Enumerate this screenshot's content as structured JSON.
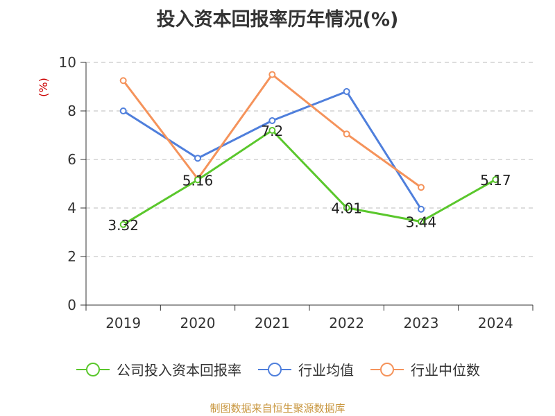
{
  "title": "投入资本回报率历年情况(%)",
  "footer": "制图数据来自恒生聚源数据库",
  "chart_data": {
    "type": "line",
    "title": "投入资本回报率历年情况(%)",
    "ylabel": "(%)",
    "xlabel": "",
    "ylim": [
      0,
      10
    ],
    "yticks": [
      "0",
      "2",
      "4",
      "6",
      "8",
      "10"
    ],
    "categories": [
      "2019",
      "2020",
      "2021",
      "2022",
      "2023",
      "2024"
    ],
    "grid": true,
    "legend_position": "bottom",
    "series": [
      {
        "name": "公司投入资本回报率",
        "color": "#5ac72c",
        "values": [
          3.32,
          5.16,
          7.2,
          4.01,
          3.44,
          5.17
        ],
        "labels": [
          "3.32",
          "5.16",
          "7.2",
          "4.01",
          "3.44",
          "5.17"
        ]
      },
      {
        "name": "行业均值",
        "color": "#4f7fdc",
        "values": [
          8.0,
          6.05,
          7.6,
          8.8,
          3.95,
          null
        ]
      },
      {
        "name": "行业中位数",
        "color": "#f5935b",
        "values": [
          9.25,
          5.2,
          9.5,
          7.05,
          4.85,
          null
        ]
      }
    ]
  }
}
